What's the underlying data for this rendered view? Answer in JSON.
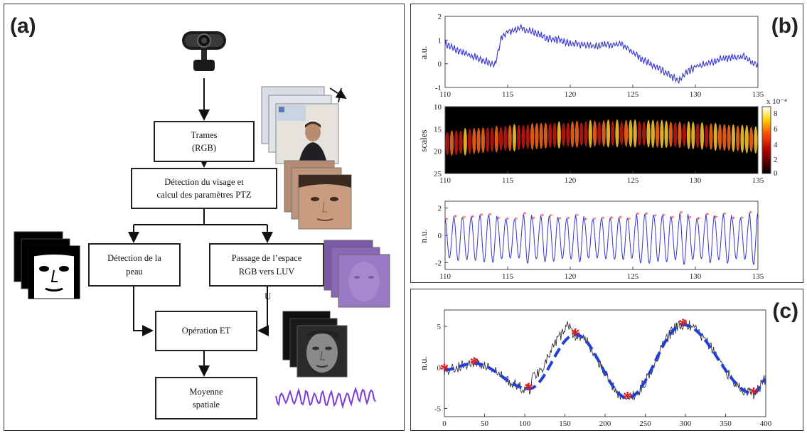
{
  "panel_a": {
    "label": "(a)",
    "boxes": {
      "frames": "Trames\n(RGB)",
      "face_detection": "Détection du visage et\ncalcul des paramètres PTZ",
      "skin_detection": "Détection de la\npeau",
      "luv_conversion": "Passage de l’espace\nRGB vers LUV",
      "and_operation": "Opération ET",
      "spatial_mean": "Moyenne\nspatiale"
    },
    "u_label": "U"
  },
  "panel_b": {
    "label": "(b)",
    "top_ylabel": "a.u.",
    "mid_ylabel": "scales",
    "bottom_ylabel": "n.u.",
    "colorbar_exponent": "x 10⁻⁴",
    "colorbar_ticks": [
      "8",
      "6",
      "4",
      "2",
      "0"
    ]
  },
  "panel_c": {
    "label": "(c)",
    "ylabel": "n.u."
  },
  "chart_data": [
    {
      "type": "line",
      "xlim": [
        110,
        135
      ],
      "ylim": [
        -1,
        2
      ],
      "xticks": [
        110,
        115,
        120,
        125,
        130,
        135
      ],
      "yticks": [
        -1,
        0,
        1,
        2
      ],
      "ylabel": "a.u.",
      "x": [
        110,
        111,
        112,
        113,
        114,
        114.5,
        115,
        116,
        117,
        118,
        119,
        120,
        121,
        122,
        123,
        124,
        125,
        126,
        127,
        128,
        128.7,
        129,
        130,
        131,
        132,
        133,
        134,
        135
      ],
      "values": [
        0.85,
        0.55,
        0.35,
        0.15,
        -0.05,
        1.1,
        1.35,
        1.5,
        1.35,
        1.1,
        1.0,
        0.85,
        0.8,
        0.75,
        0.8,
        0.85,
        0.5,
        0.1,
        -0.2,
        -0.5,
        -0.75,
        -0.5,
        -0.1,
        0.0,
        0.2,
        0.25,
        0.3,
        -0.1
      ]
    },
    {
      "type": "heatmap",
      "xlim": [
        110,
        135
      ],
      "ylim": [
        25,
        10
      ],
      "xticks": [
        110,
        115,
        120,
        125,
        130,
        135
      ],
      "yticks": [
        10,
        15,
        20,
        25
      ],
      "ylabel": "scales",
      "colorbar": {
        "min": 0,
        "max": 8,
        "exponent": "x 10⁻⁴"
      }
    },
    {
      "type": "line",
      "xlim": [
        110,
        135
      ],
      "ylim": [
        -2.5,
        2.5
      ],
      "xticks": [
        110,
        115,
        120,
        125,
        130,
        135
      ],
      "yticks": [
        -2,
        0,
        2
      ],
      "ylabel": "n.u.",
      "oscillation_cycles": 36,
      "peak_markers": "red asterisks at each peak"
    },
    {
      "type": "line",
      "xlim": [
        0,
        400
      ],
      "ylim": [
        -6,
        7
      ],
      "xticks": [
        0,
        50,
        100,
        150,
        200,
        250,
        300,
        350,
        400
      ],
      "yticks": [
        -5,
        0,
        5
      ],
      "ylabel": "n.u.",
      "series": [
        {
          "x": [
            0,
            37,
            105,
            163,
            228,
            297,
            385,
            400
          ],
          "values": [
            -0.3,
            0.5,
            -2.6,
            4.0,
            -3.7,
            5.2,
            -3.2,
            -1.5
          ]
        }
      ],
      "markers_x": [
        0,
        37,
        105,
        163,
        228,
        297,
        385
      ],
      "markers_y": [
        -0.3,
        0.5,
        -2.6,
        4.0,
        -3.7,
        5.2,
        -3.2
      ]
    }
  ]
}
